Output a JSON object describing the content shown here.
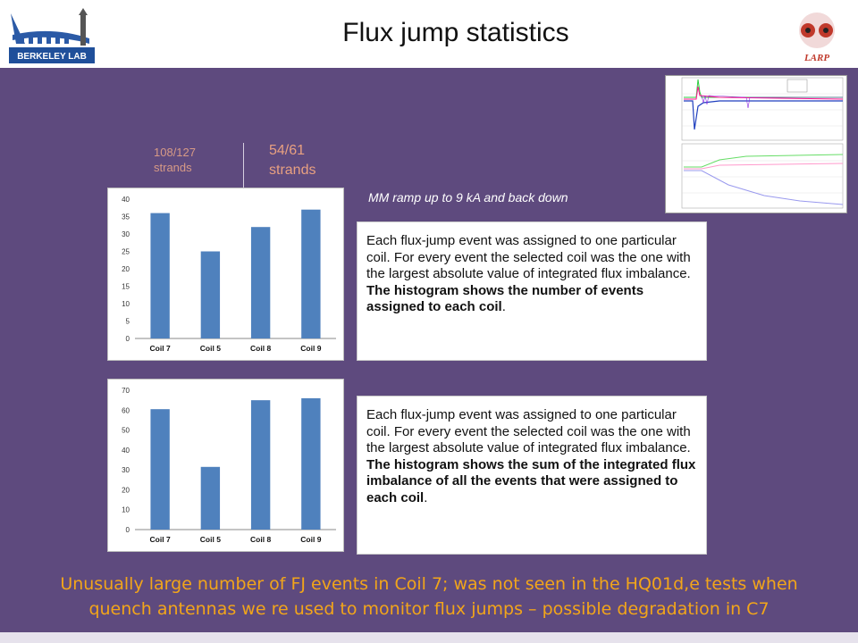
{
  "header": {
    "title": "Flux jump statistics",
    "left_logo_text": "BERKELEY LAB",
    "right_logo_text": "LARP"
  },
  "strands": {
    "left_fraction": "108/127",
    "left_unit": "strands",
    "right_fraction": "54/61",
    "right_unit": "strands"
  },
  "ramp_label": "MM ramp up to 9 kA and back down",
  "textbox1": {
    "normal": "Each flux-jump event was assigned to one particular coil. For every event the selected coil was the one with the largest absolute value of integrated flux imbalance.",
    "bold": "The histogram shows the number of events assigned to each coil",
    "end": "."
  },
  "textbox2": {
    "normal": "Each flux-jump event was assigned to one particular coil. For every event the selected coil was the one with the largest absolute value of integrated flux imbalance.",
    "bold": "The histogram shows the sum of the integrated flux imbalance of all the events that were assigned to each coil",
    "end": "."
  },
  "conclusion": {
    "line1": "Unusually large number of FJ events in Coil 7; was not seen in the HQ01d,e tests when",
    "line2": "quench antennas we re used to monitor flux jumps – possible degradation  in C7"
  },
  "colors": {
    "panel": "#5e4a7e",
    "bar": "#4f81bd",
    "conclusion_text": "#f2a51a"
  },
  "chart_data": [
    {
      "type": "bar",
      "categories": [
        "Coil 7",
        "Coil 5",
        "Coil 8",
        "Coil 9"
      ],
      "values": [
        36,
        25,
        32,
        37
      ],
      "ylim": [
        0,
        40
      ],
      "yticks": [
        0,
        5,
        10,
        15,
        20,
        25,
        30,
        35,
        40
      ],
      "grid": false
    },
    {
      "type": "bar",
      "categories": [
        "Coil 7",
        "Coil 5",
        "Coil 8",
        "Coil 9"
      ],
      "values": [
        60.5,
        31.5,
        65,
        66
      ],
      "ylim": [
        0,
        70
      ],
      "yticks": [
        0,
        10,
        20,
        30,
        40,
        50,
        60,
        70
      ],
      "grid": false
    }
  ]
}
